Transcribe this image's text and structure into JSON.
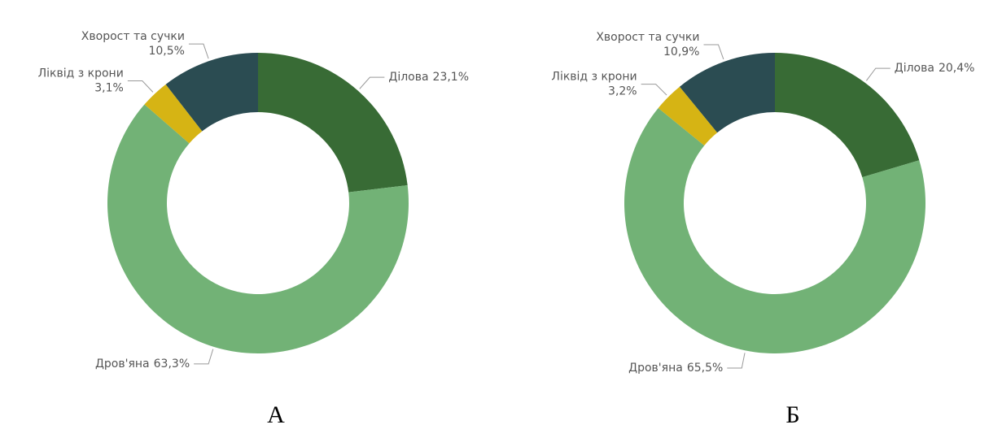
{
  "chart_data": [
    {
      "type": "pie",
      "donut": true,
      "title": "А",
      "categories": [
        "Ділова",
        "Дров'яна",
        "Ліквід з крони",
        "Хворост та сучки"
      ],
      "values": [
        23.1,
        63.3,
        3.1,
        10.5
      ],
      "value_labels": [
        "23,1%",
        "63,3%",
        "3,1%",
        "10,5%"
      ],
      "colors": [
        "#386b35",
        "#72b276",
        "#d6b414",
        "#2b4c52"
      ]
    },
    {
      "type": "pie",
      "donut": true,
      "title": "Б",
      "categories": [
        "Ділова",
        "Дров'яна",
        "Ліквід з крони",
        "Хворост та сучки"
      ],
      "values": [
        20.4,
        65.5,
        3.2,
        10.9
      ],
      "value_labels": [
        "20,4%",
        "65,5%",
        "3,2%",
        "10,9%"
      ],
      "colors": [
        "#386b35",
        "#72b276",
        "#d6b414",
        "#2b4c52"
      ]
    }
  ]
}
